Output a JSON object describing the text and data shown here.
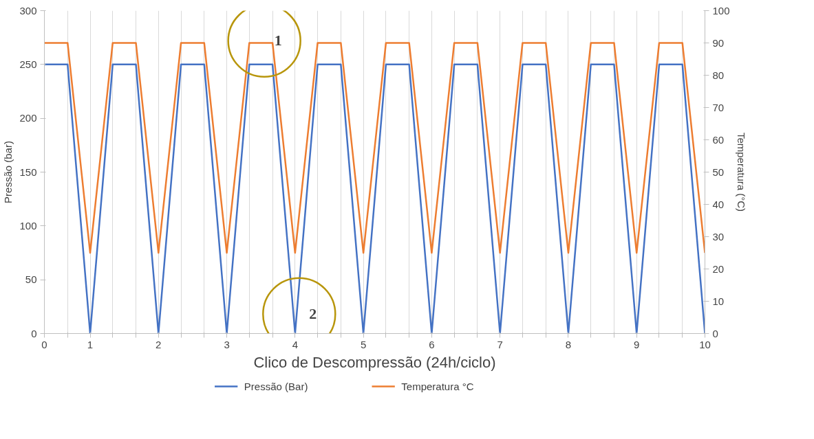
{
  "chart_data": {
    "type": "line",
    "xlabel": "Clico de Descompressão (24h/ciclo)",
    "ylabel": "Pressão (bar)",
    "y2label": "Temperatura (°C)",
    "x": [
      0.33,
      0.67,
      1,
      1.33,
      1.67,
      2,
      2.33,
      2.67,
      3,
      3.33,
      3.67,
      4,
      4.33,
      4.67,
      5,
      5.33,
      5.67,
      6,
      6.33,
      6.67,
      7,
      7.33,
      7.67,
      8,
      8.33,
      8.67,
      9,
      9.33,
      9.67,
      10
    ],
    "series": [
      {
        "name": "Pressão (Bar)",
        "color": "#4472c4",
        "values": [
          250,
          250,
          0,
          250,
          250,
          0,
          250,
          250,
          0,
          250,
          250,
          0,
          250,
          250,
          0,
          250,
          250,
          0,
          250,
          250,
          0,
          250,
          250,
          0,
          250,
          250,
          0,
          250,
          250,
          0
        ]
      },
      {
        "name": "Temperatura °C",
        "color": "#ed7d31",
        "axis": "y2",
        "values": [
          90,
          90,
          25,
          90,
          90,
          25,
          90,
          90,
          25,
          90,
          90,
          25,
          90,
          90,
          25,
          90,
          90,
          25,
          90,
          90,
          25,
          90,
          90,
          25,
          90,
          90,
          25,
          90,
          90,
          25
        ]
      }
    ],
    "xlim": [
      0.33,
      10
    ],
    "xticks": [
      {
        "value": 0.33,
        "label": "0"
      },
      {
        "value": 0.67,
        "label": null
      },
      1,
      {
        "value": 1.33,
        "label": null
      },
      {
        "value": 1.67,
        "label": null
      },
      2,
      {
        "value": 2.33,
        "label": null
      },
      {
        "value": 2.67,
        "label": null
      },
      3,
      {
        "value": 3.33,
        "label": null
      },
      {
        "value": 3.67,
        "label": null
      },
      4,
      {
        "value": 4.33,
        "label": null
      },
      {
        "value": 4.67,
        "label": null
      },
      5,
      {
        "value": 5.33,
        "label": null
      },
      {
        "value": 5.67,
        "label": null
      },
      6,
      {
        "value": 6.33,
        "label": null
      },
      {
        "value": 6.67,
        "label": null
      },
      7,
      {
        "value": 7.33,
        "label": null
      },
      {
        "value": 7.67,
        "label": null
      },
      8,
      {
        "value": 8.33,
        "label": null
      },
      {
        "value": 8.67,
        "label": null
      },
      9,
      {
        "value": 9.33,
        "label": null
      },
      {
        "value": 9.67,
        "label": null
      },
      10
    ],
    "ylim": [
      0,
      300
    ],
    "yticks": [
      0,
      50,
      100,
      150,
      200,
      250,
      300
    ],
    "y2lim": [
      0,
      100
    ],
    "y2ticks": [
      0,
      10,
      20,
      30,
      40,
      50,
      60,
      70,
      80,
      90,
      100
    ],
    "annotations": [
      {
        "text": "1",
        "x": 3.55,
        "y": 272
      },
      {
        "text": "2",
        "x": 4.06,
        "y": 18
      }
    ],
    "grid": "x",
    "legend": "bottom",
    "marker": "none",
    "line_style": "solid"
  }
}
